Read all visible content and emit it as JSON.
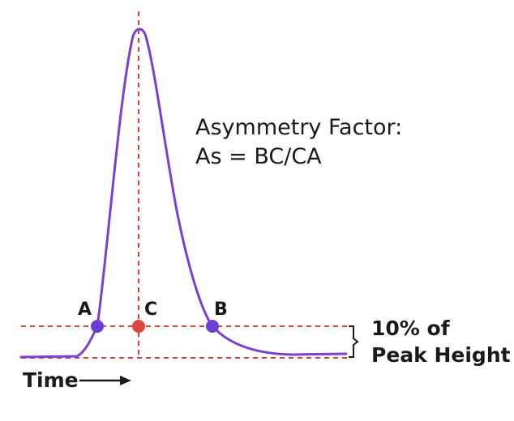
{
  "formula": {
    "line1": "Asymmetry Factor:",
    "line2": "As = BC/CA"
  },
  "points": {
    "a": "A",
    "b": "B",
    "c": "C"
  },
  "threshold_label": {
    "line1": "10% of",
    "line2": "Peak Height"
  },
  "x_axis_label": "Time",
  "colors": {
    "curve": "#7b3fd1",
    "point_ab": "#6b3fcf",
    "point_c": "#e0483f",
    "guide_lines": "#d0463f",
    "text": "#1a1a1a"
  }
}
